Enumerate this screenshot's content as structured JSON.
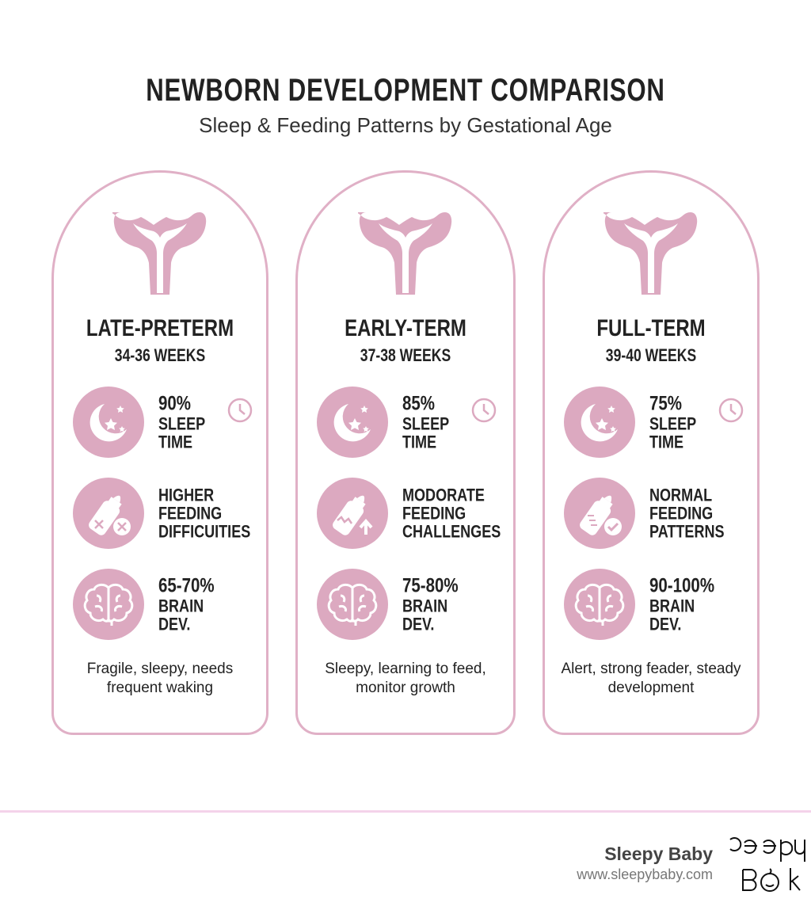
{
  "header": {
    "title": "NEWBORN DEVELOPMENT COMPARISON",
    "subtitle": "Sleep & Feeding Patterns by Gestational Age"
  },
  "colors": {
    "accent": "#dca9c0",
    "border": "#e0b0c6",
    "divider": "#f4d3ea"
  },
  "cards": [
    {
      "title": "LATE-PRETERM",
      "weeks": "34-36 WEEKS",
      "sleep_value": "90%",
      "sleep_label": "SLEEP TIME",
      "feeding": "HIGHER\nFEEDING\nDIFFICUITIES",
      "feeding_icon": "bottle-x-icon",
      "brain_value": "65-70%",
      "brain_label": "BRAIN DEV.",
      "description": "Fragile, sleepy, needs frequent waking"
    },
    {
      "title": "EARLY-TERM",
      "weeks": "37-38 WEEKS",
      "sleep_value": "85%",
      "sleep_label": "SLEEP TIME",
      "feeding": "MODORATE\nFEEDING\nCHALLENGES",
      "feeding_icon": "bottle-arrow-up-icon",
      "brain_value": "75-80%",
      "brain_label": "BRAIN DEV.",
      "description": "Sleepy, learning to feed, monitor growth"
    },
    {
      "title": "FULL-TERM",
      "weeks": "39-40 WEEKS",
      "sleep_value": "75%",
      "sleep_label": "SLEEP TIME",
      "feeding": "NORMAL\nFEEDING\nPATTERNS",
      "feeding_icon": "bottle-check-icon",
      "brain_value": "90-100%",
      "brain_label": "BRAIN DEV.",
      "description": "Alert, strong feader, steady development"
    }
  ],
  "footer": {
    "brand": "Sleepy Baby",
    "url": "www.sleepybaby.com",
    "logo_text": "Sleepy Baby"
  }
}
